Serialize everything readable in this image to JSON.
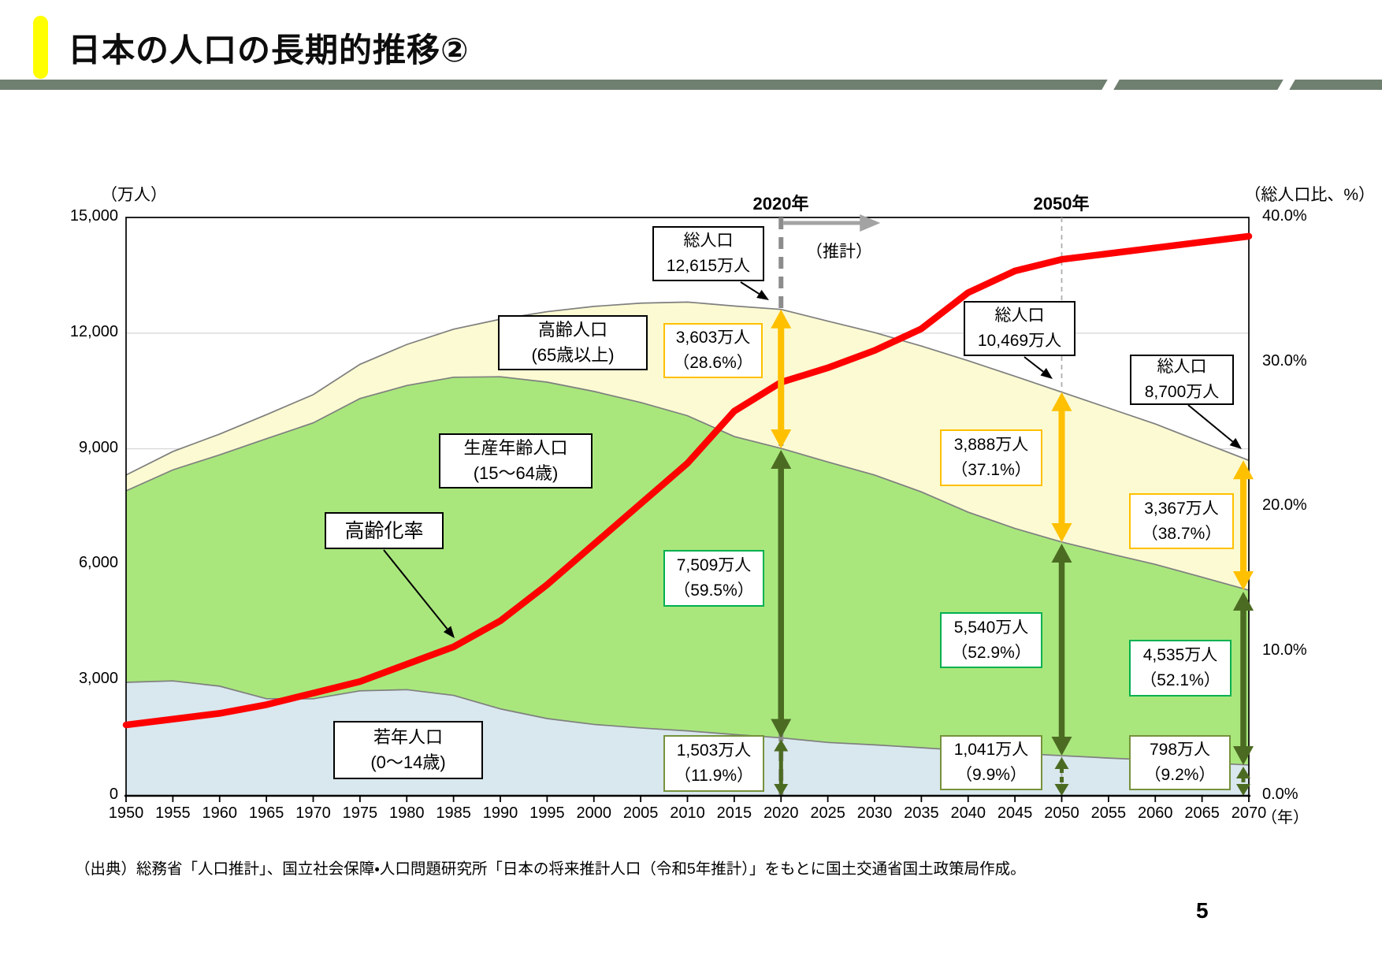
{
  "header": {
    "title": "日本の人口の長期的推移②"
  },
  "page_number": "5",
  "source": "（出典）総務省「人口推計」、国立社会保障・人口問題研究所「日本の将来推計人口（令和5年推計）」をもとに国土交通省国土政策局作成。",
  "chart": {
    "left_axis_unit": "（万人）",
    "right_axis_unit": "（総人口比、%）",
    "x_axis_unit": "（年）",
    "markers": {
      "y2020": "2020年",
      "y2050": "2050年",
      "estimate": "（推計）"
    }
  },
  "callouts": {
    "total_2020": {
      "l1": "総人口",
      "l2": "12,615万人"
    },
    "total_2050": {
      "l1": "総人口",
      "l2": "10,469万人"
    },
    "total_2070": {
      "l1": "総人口",
      "l2": "8,700万人"
    },
    "elderly_label": {
      "l1": "高齢人口",
      "l2": "(65歳以上)"
    },
    "working_label": {
      "l1": "生産年齢人口",
      "l2": "(15～64歳)"
    },
    "young_label": {
      "l1": "若年人口",
      "l2": "(0～14歳)"
    },
    "aging_label": "高齢化率",
    "elderly_2020": {
      "l1": "3,603万人",
      "l2": "（28.6%）"
    },
    "working_2020": {
      "l1": "7,509万人",
      "l2": "（59.5%）"
    },
    "young_2020": {
      "l1": "1,503万人",
      "l2": "（11.9%）"
    },
    "elderly_2050": {
      "l1": "3,888万人",
      "l2": "（37.1%）"
    },
    "working_2050": {
      "l1": "5,540万人",
      "l2": "（52.9%）"
    },
    "young_2050": {
      "l1": "1,041万人",
      "l2": "（9.9%）"
    },
    "elderly_2070": {
      "l1": "3,367万人",
      "l2": "（38.7%）"
    },
    "working_2070": {
      "l1": "4,535万人",
      "l2": "（52.1%）"
    },
    "young_2070": {
      "l1": "798万人",
      "l2": "（9.2%）"
    }
  },
  "chart_data": {
    "type": "area",
    "title": "日本の人口の長期的推移②",
    "x": [
      1950,
      1955,
      1960,
      1965,
      1970,
      1975,
      1980,
      1985,
      1990,
      1995,
      2000,
      2005,
      2010,
      2015,
      2020,
      2025,
      2030,
      2035,
      2040,
      2045,
      2050,
      2055,
      2060,
      2065,
      2070
    ],
    "series": [
      {
        "name": "若年人口（0～14歳）",
        "color": "#d9e7ee",
        "values": [
          2943,
          2980,
          2843,
          2517,
          2515,
          2722,
          2752,
          2604,
          2254,
          2003,
          1851,
          1759,
          1684,
          1589,
          1503,
          1383,
          1321,
          1246,
          1169,
          1103,
          1041,
          979,
          923,
          860,
          798
        ]
      },
      {
        "name": "生産年齢人口（15～64歳）",
        "color": "#a9e77d",
        "values": [
          4966,
          5473,
          6000,
          6744,
          7157,
          7581,
          7888,
          8251,
          8614,
          8726,
          8638,
          8442,
          8174,
          7728,
          7509,
          7275,
          6998,
          6636,
          6187,
          5832,
          5540,
          5307,
          5078,
          4810,
          4535
        ]
      },
      {
        "name": "高齢人口（65歳以上）",
        "color": "#fbfad2",
        "values": [
          411,
          476,
          539,
          624,
          733,
          887,
          1065,
          1247,
          1493,
          1828,
          2204,
          2576,
          2948,
          3387,
          3603,
          3653,
          3696,
          3782,
          3928,
          3945,
          3888,
          3771,
          3643,
          3500,
          3367
        ]
      }
    ],
    "line_series": {
      "name": "高齢化率",
      "axis": "right",
      "color": "#ff0000",
      "values": [
        4.9,
        5.3,
        5.7,
        6.3,
        7.1,
        7.9,
        9.1,
        10.3,
        12.1,
        14.6,
        17.4,
        20.2,
        23.0,
        26.6,
        28.6,
        29.6,
        30.8,
        32.3,
        34.8,
        36.3,
        37.1,
        37.5,
        37.9,
        38.3,
        38.7
      ]
    },
    "annotations": {
      "totals": {
        "2020": 12615,
        "2050": 10469,
        "2070": 8700
      },
      "estimate_from_year": 2020,
      "marker_years": [
        2020,
        2050
      ]
    },
    "ylim": [
      0,
      15000
    ],
    "y2lim": [
      0,
      40
    ],
    "y_ticks": [
      "15,000",
      "12,000",
      "9,000",
      "6,000",
      "3,000",
      "0"
    ],
    "y_tick_values": [
      15000,
      12000,
      9000,
      6000,
      3000,
      0
    ],
    "right_ticks": [
      "40.0%",
      "30.0%",
      "20.0%",
      "10.0%",
      "0.0%"
    ],
    "right_tick_values": [
      40,
      30,
      20,
      10,
      0
    ],
    "grid": true,
    "legend": "none",
    "arrow_colors": {
      "elderly": "#ffc000",
      "working": "#4c6b22",
      "young": "#4c6b22"
    }
  }
}
